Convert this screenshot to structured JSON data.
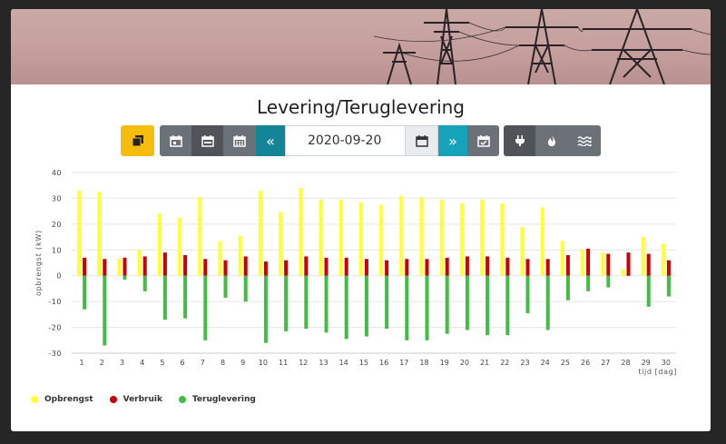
{
  "page": {
    "title": "Levering/Teruglevering"
  },
  "toolbar": {
    "date_value": "2020-09-20",
    "prev_label": "«",
    "next_label": "»"
  },
  "colors": {
    "opbrengst": "#ffff33",
    "verbruik": "#cc0000",
    "teruglevering": "#44bb44",
    "accent_yellow": "#f7bd0e",
    "accent_teal": "#16a2b8"
  },
  "icons": [
    "copy-icon",
    "calendar-day-icon",
    "calendar-week-icon",
    "calendar-month-icon",
    "calendar-icon",
    "calendar-check-icon",
    "plug-icon",
    "flame-icon",
    "water-icon"
  ],
  "chart_data": {
    "type": "bar",
    "xlabel": "tijd [dag]",
    "ylabel": "opbrengst (kW)",
    "ylim": [
      -30,
      40
    ],
    "yticks": [
      -30,
      -20,
      -10,
      0,
      10,
      20,
      30,
      40
    ],
    "categories": [
      "1",
      "2",
      "3",
      "4",
      "5",
      "6",
      "7",
      "8",
      "9",
      "10",
      "11",
      "12",
      "13",
      "14",
      "15",
      "16",
      "17",
      "18",
      "19",
      "20",
      "21",
      "22",
      "23",
      "24",
      "25",
      "26",
      "27",
      "28",
      "29",
      "30"
    ],
    "grid": true,
    "legend_position": "bottom-left",
    "series": [
      {
        "name": "Opbrengst",
        "values": [
          33,
          32.5,
          6.5,
          10,
          24,
          22.5,
          30.5,
          13.5,
          15.5,
          33,
          24.5,
          34,
          29.5,
          29.5,
          28.5,
          27.5,
          31,
          30.5,
          29.5,
          28,
          29.5,
          28,
          19,
          26.5,
          13.5,
          10,
          9,
          2.5,
          15,
          12.5
        ]
      },
      {
        "name": "Verbruik",
        "values": [
          7,
          6.5,
          7,
          7.5,
          9,
          8,
          6.5,
          6,
          7.5,
          5.5,
          6,
          7.5,
          7,
          7,
          6.5,
          6,
          6.5,
          6.5,
          7,
          7.5,
          7.5,
          7,
          6.5,
          6.5,
          8,
          10.5,
          8.5,
          9,
          8.5,
          6
        ]
      },
      {
        "name": "Teruglevering",
        "values": [
          -13,
          -27,
          -1.5,
          -6,
          -17,
          -16.5,
          -25,
          -8.5,
          -10,
          -26,
          -21.5,
          -20.5,
          -22,
          -24.5,
          -23.5,
          -20.5,
          -25,
          -25,
          -22.5,
          -21,
          -23,
          -23,
          -14.5,
          -21,
          -9.5,
          -6,
          -4.5,
          0,
          -12,
          -8
        ]
      }
    ]
  }
}
